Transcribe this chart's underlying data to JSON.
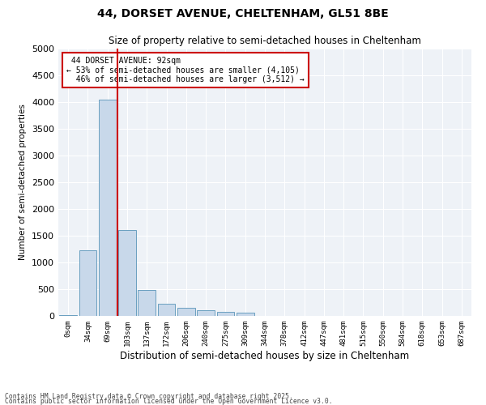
{
  "title_line1": "44, DORSET AVENUE, CHELTENHAM, GL51 8BE",
  "title_line2": "Size of property relative to semi-detached houses in Cheltenham",
  "xlabel": "Distribution of semi-detached houses by size in Cheltenham",
  "ylabel": "Number of semi-detached properties",
  "categories": [
    "0sqm",
    "34sqm",
    "69sqm",
    "103sqm",
    "137sqm",
    "172sqm",
    "206sqm",
    "240sqm",
    "275sqm",
    "309sqm",
    "344sqm",
    "378sqm",
    "412sqm",
    "447sqm",
    "481sqm",
    "515sqm",
    "550sqm",
    "584sqm",
    "618sqm",
    "653sqm",
    "687sqm"
  ],
  "values": [
    10,
    1230,
    4050,
    1610,
    480,
    220,
    150,
    100,
    70,
    55,
    0,
    0,
    0,
    0,
    0,
    0,
    0,
    0,
    0,
    0,
    0
  ],
  "bar_color": "#c8d8ea",
  "bar_edge_color": "#6a9fc0",
  "vline_color": "#cc0000",
  "property_label": "44 DORSET AVENUE: 92sqm",
  "pct_smaller": 53,
  "n_smaller": 4105,
  "pct_larger": 46,
  "n_larger": 3512,
  "ylim": [
    0,
    5000
  ],
  "yticks": [
    0,
    500,
    1000,
    1500,
    2000,
    2500,
    3000,
    3500,
    4000,
    4500,
    5000
  ],
  "annotation_box_color": "#cc0000",
  "plot_bg_color": "#eef2f7",
  "footnote1": "Contains HM Land Registry data © Crown copyright and database right 2025.",
  "footnote2": "Contains public sector information licensed under the Open Government Licence v3.0."
}
